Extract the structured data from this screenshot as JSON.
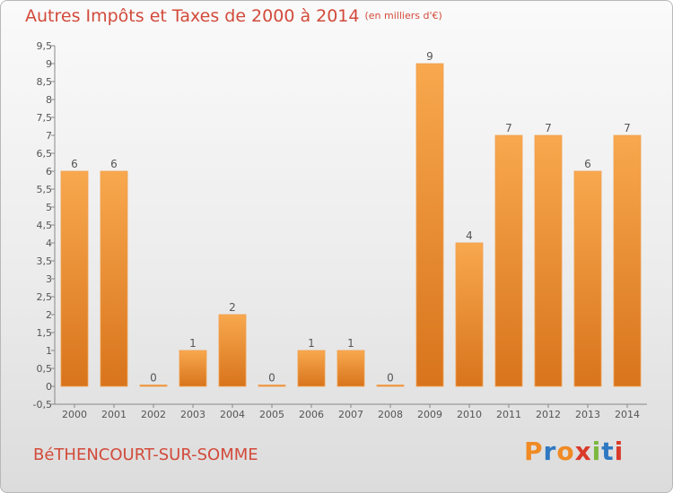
{
  "header": {
    "title": "Autres Impôts et Taxes de 2000 à 2014",
    "unit": "(en milliers d'€)"
  },
  "footer": {
    "place": "BéTHENCOURT-SUR-SOMME",
    "logo": "Proxiti"
  },
  "colors": {
    "bar": "#f59a3f",
    "title": "#d24a3a",
    "logo": [
      "#f08a24",
      "#2f78c2",
      "#f08a24",
      "#d93a2a",
      "#7bb83d",
      "#2f78c2",
      "#d93a2a"
    ]
  },
  "chart_data": {
    "type": "bar",
    "title": "Autres Impôts et Taxes de 2000 à 2014",
    "categories": [
      "2000",
      "2001",
      "2002",
      "2003",
      "2004",
      "2005",
      "2006",
      "2007",
      "2008",
      "2009",
      "2010",
      "2011",
      "2012",
      "2013",
      "2014"
    ],
    "values": [
      6,
      6,
      0,
      1,
      2,
      0,
      1,
      1,
      0,
      9,
      4,
      7,
      7,
      6,
      7
    ],
    "data_labels": [
      "6",
      "6",
      "0",
      "1",
      "2",
      "0",
      "1",
      "1",
      "0",
      "9",
      "4",
      "7",
      "7",
      "6",
      "7"
    ],
    "ylim": [
      -0.5,
      9.5
    ],
    "yticks": [
      "-0,5",
      "0",
      "0,5",
      "1",
      "1,5",
      "2",
      "2,5",
      "3",
      "3,5",
      "4",
      "4,5",
      "5",
      "5,5",
      "6",
      "6,5",
      "7",
      "7,5",
      "8",
      "8,5",
      "9",
      "9,5"
    ],
    "grid": false,
    "legend": "none"
  }
}
